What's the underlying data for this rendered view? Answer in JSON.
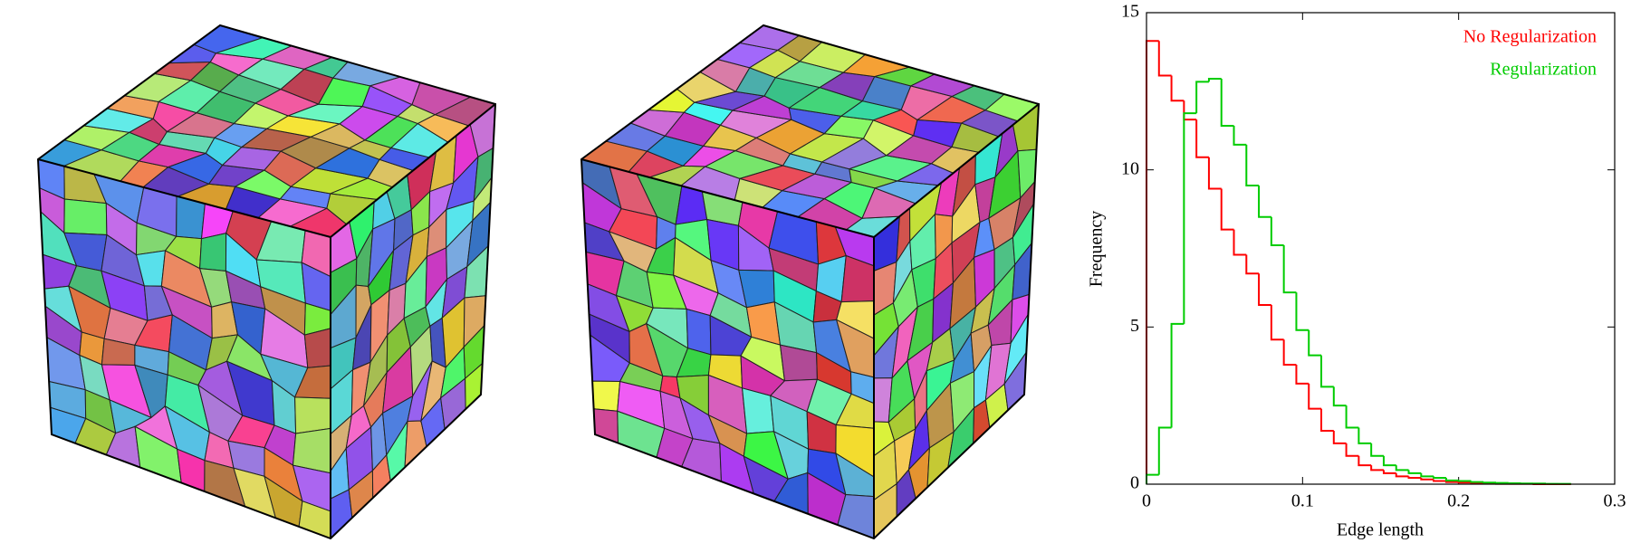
{
  "chart_data": {
    "type": "histogram-step",
    "xlabel": "Edge length",
    "ylabel": "Frequency",
    "bins": [
      0,
      0.008,
      0.016,
      0.024,
      0.032,
      0.04,
      0.048,
      0.056,
      0.064,
      0.072,
      0.08,
      0.088,
      0.096,
      0.104,
      0.112,
      0.12,
      0.128,
      0.136,
      0.144,
      0.152,
      0.16,
      0.168,
      0.176,
      0.184,
      0.192,
      0.2,
      0.208,
      0.216,
      0.224,
      0.232,
      0.24,
      0.248,
      0.256,
      0.264,
      0.272
    ],
    "series": [
      {
        "name": "No Regularization",
        "color": "#ff0000",
        "values": [
          14.1,
          13.0,
          12.2,
          11.6,
          10.4,
          9.4,
          8.1,
          7.3,
          6.7,
          5.7,
          4.6,
          3.8,
          3.2,
          2.4,
          1.7,
          1.3,
          0.9,
          0.6,
          0.45,
          0.35,
          0.25,
          0.2,
          0.15,
          0.1,
          0.07,
          0.05,
          0.03,
          0.02,
          0.01,
          0.01,
          0.01,
          0,
          0,
          0
        ]
      },
      {
        "name": "Regularization",
        "color": "#00cc00",
        "values": [
          0.3,
          1.8,
          5.1,
          11.8,
          12.8,
          12.9,
          11.4,
          10.8,
          9.5,
          8.5,
          7.6,
          6.1,
          4.9,
          4.1,
          3.1,
          2.5,
          1.8,
          1.3,
          0.9,
          0.6,
          0.45,
          0.35,
          0.25,
          0.2,
          0.12,
          0.1,
          0.07,
          0.05,
          0.04,
          0.03,
          0.02,
          0.02,
          0.01,
          0.01
        ]
      }
    ],
    "xlim": [
      0,
      0.3
    ],
    "xticks": [
      0,
      0.1,
      0.2,
      0.3
    ],
    "ylim": [
      0,
      15
    ],
    "yticks": [
      0,
      5,
      10,
      15
    ],
    "legend": "upper right",
    "grid": false
  }
}
